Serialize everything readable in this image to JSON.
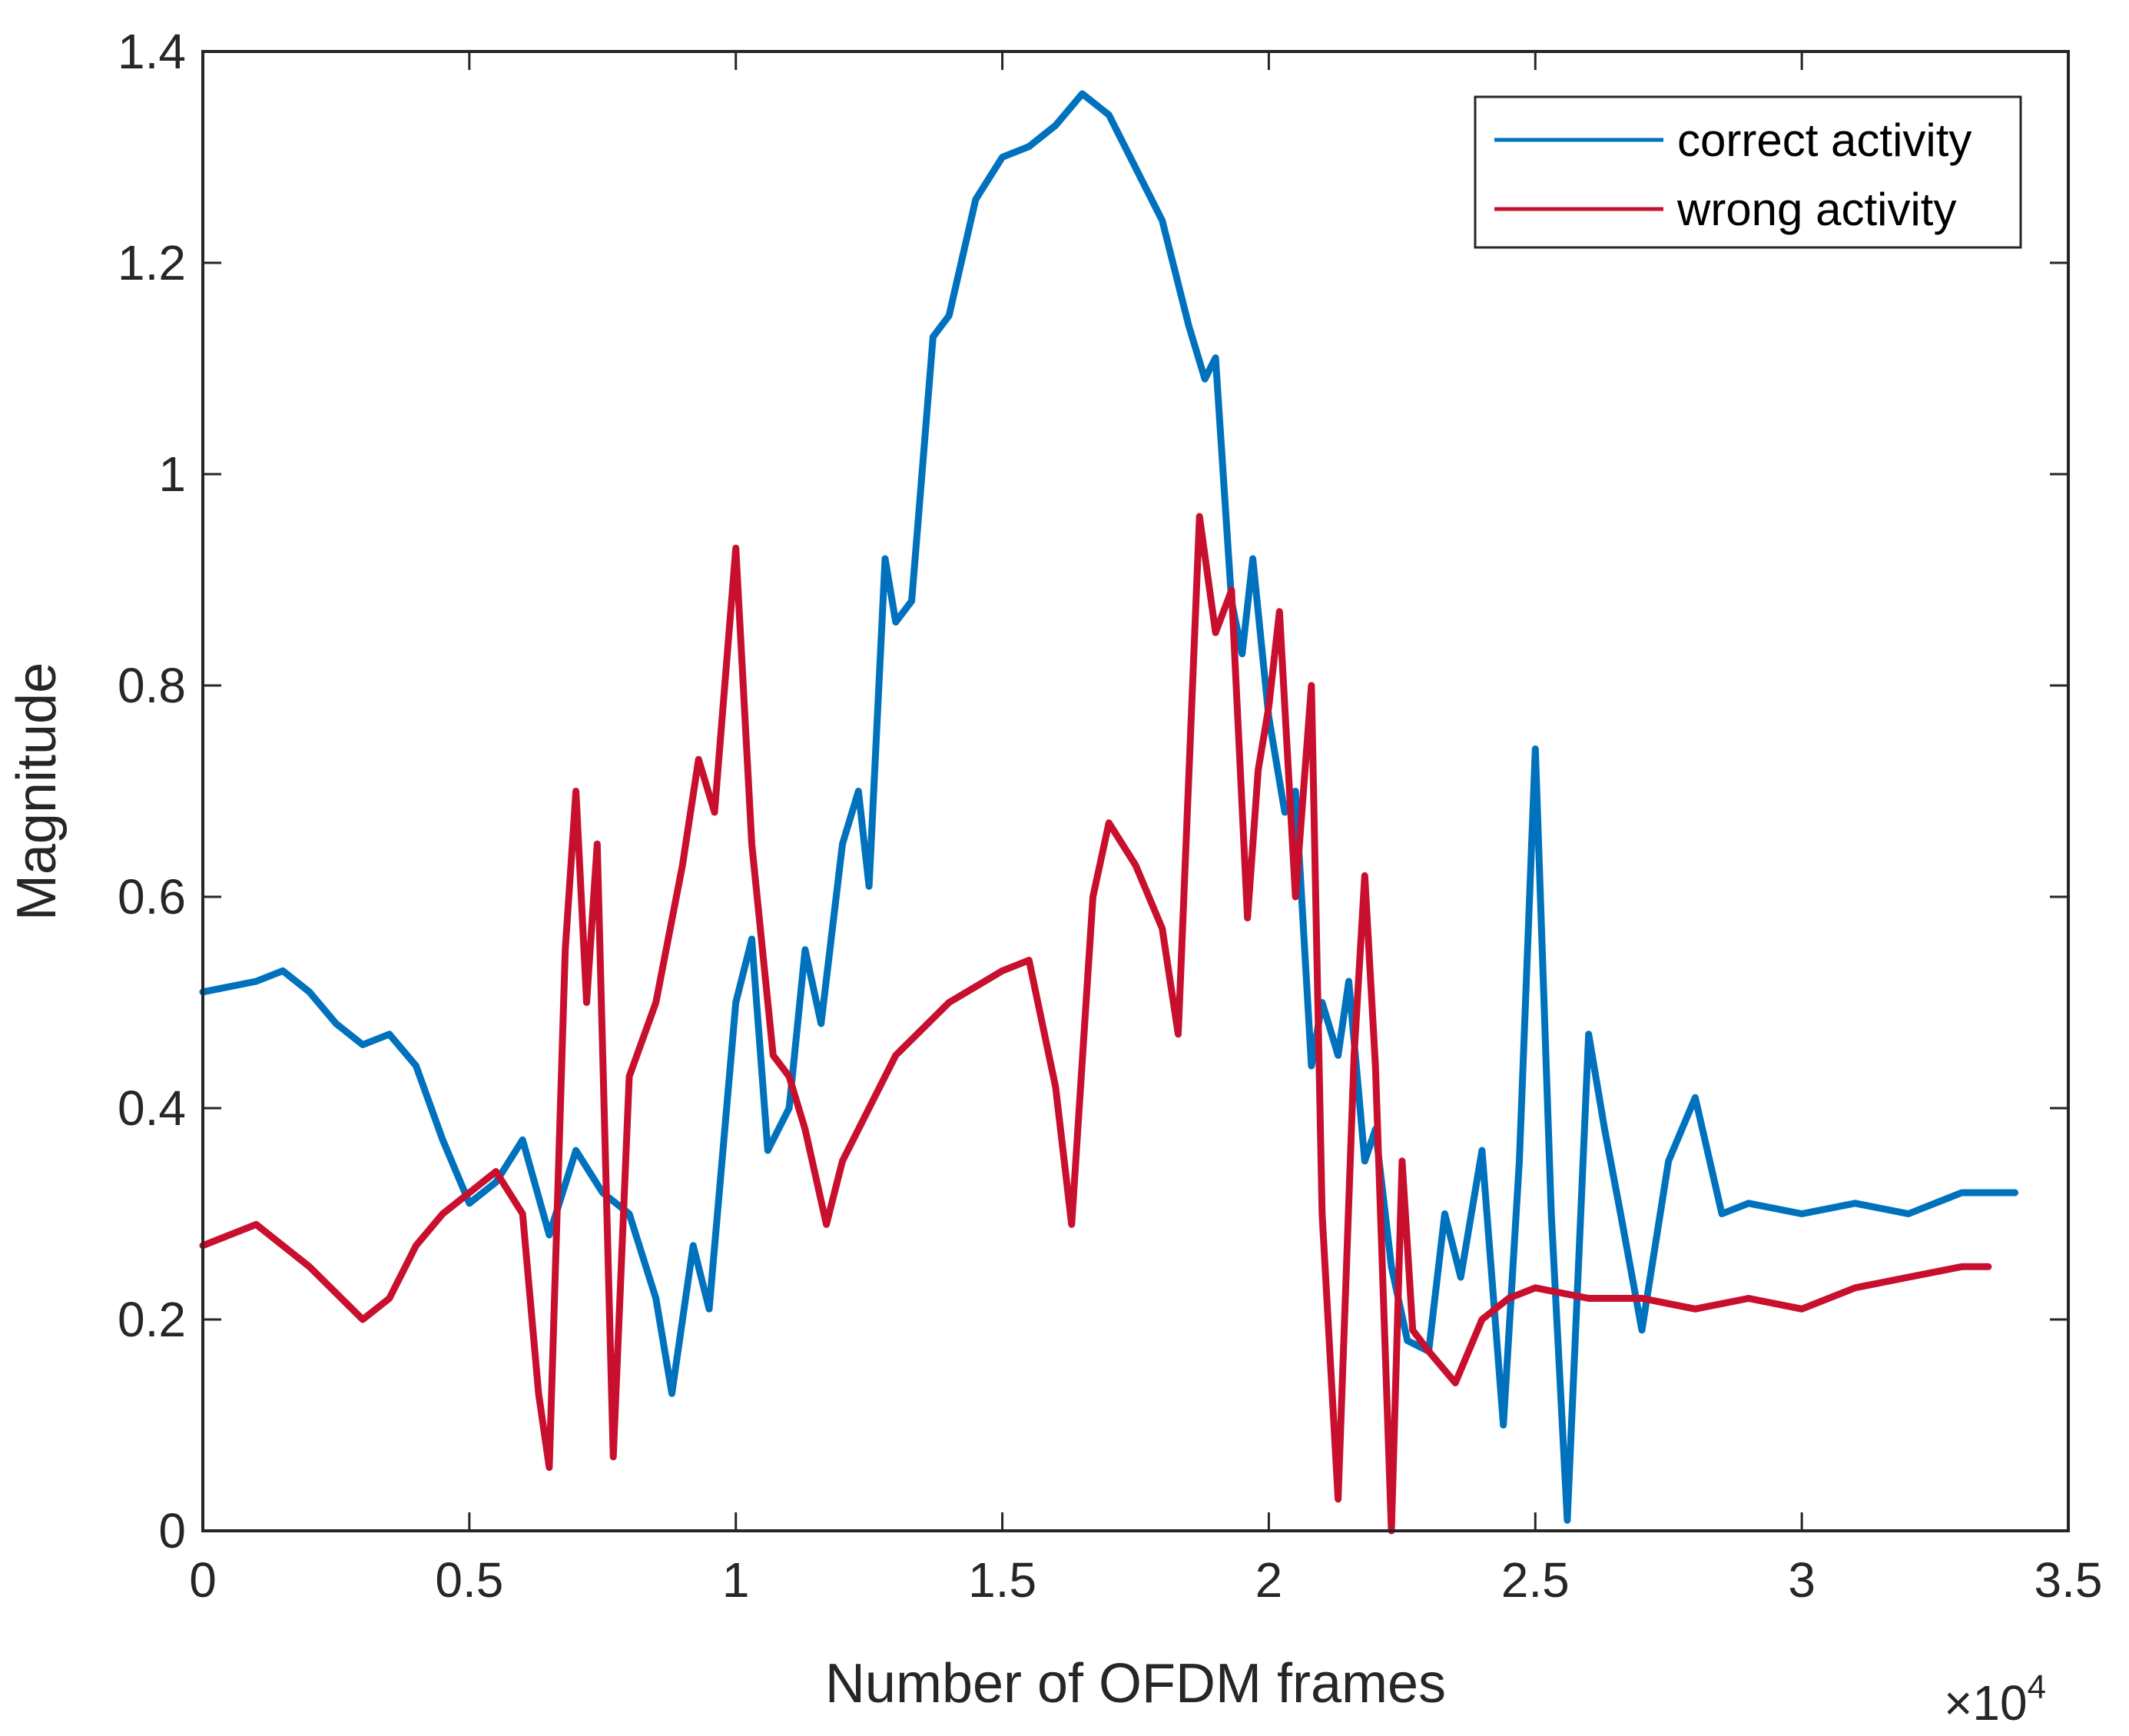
{
  "chart_data": {
    "type": "line",
    "title": "",
    "xlabel": "Number of OFDM frames",
    "ylabel": "Magnitude",
    "x_multiplier_base": "×10",
    "x_multiplier_exp": "4",
    "xlim": [
      0,
      3.5
    ],
    "ylim": [
      0,
      1.4
    ],
    "xticks": [
      0,
      0.5,
      1,
      1.5,
      2,
      2.5,
      3,
      3.5
    ],
    "xtick_labels": [
      "0",
      "0.5",
      "1",
      "1.5",
      "2",
      "2.5",
      "3",
      "3.5"
    ],
    "yticks": [
      0,
      0.2,
      0.4,
      0.6,
      0.8,
      1,
      1.2,
      1.4
    ],
    "ytick_labels": [
      "0",
      "0.2",
      "0.4",
      "0.6",
      "0.8",
      "1",
      "1.2",
      "1.4"
    ],
    "grid": false,
    "legend_position": "top-right",
    "series": [
      {
        "name": "correct activity",
        "color": "#0072BD",
        "x": [
          0,
          0.1,
          0.15,
          0.2,
          0.25,
          0.3,
          0.35,
          0.4,
          0.45,
          0.5,
          0.55,
          0.6,
          0.65,
          0.7,
          0.75,
          0.8,
          0.85,
          0.88,
          0.92,
          0.95,
          1.0,
          1.03,
          1.06,
          1.1,
          1.13,
          1.16,
          1.2,
          1.23,
          1.25,
          1.28,
          1.3,
          1.33,
          1.37,
          1.4,
          1.45,
          1.5,
          1.55,
          1.6,
          1.65,
          1.7,
          1.75,
          1.8,
          1.85,
          1.88,
          1.9,
          1.93,
          1.95,
          1.97,
          2.0,
          2.03,
          2.05,
          2.08,
          2.1,
          2.13,
          2.15,
          2.18,
          2.2,
          2.23,
          2.26,
          2.3,
          2.33,
          2.36,
          2.4,
          2.44,
          2.47,
          2.5,
          2.53,
          2.56,
          2.6,
          2.63,
          2.66,
          2.7,
          2.75,
          2.8,
          2.85,
          2.9,
          3.0,
          3.1,
          3.2,
          3.3,
          3.4
        ],
        "y": [
          0.51,
          0.52,
          0.53,
          0.51,
          0.48,
          0.46,
          0.47,
          0.44,
          0.37,
          0.31,
          0.33,
          0.37,
          0.28,
          0.36,
          0.32,
          0.3,
          0.22,
          0.13,
          0.27,
          0.21,
          0.5,
          0.56,
          0.36,
          0.4,
          0.55,
          0.48,
          0.65,
          0.7,
          0.61,
          0.92,
          0.86,
          0.88,
          1.13,
          1.15,
          1.26,
          1.3,
          1.31,
          1.33,
          1.36,
          1.34,
          1.29,
          1.24,
          1.14,
          1.09,
          1.11,
          0.88,
          0.83,
          0.92,
          0.77,
          0.68,
          0.7,
          0.44,
          0.5,
          0.45,
          0.52,
          0.35,
          0.38,
          0.25,
          0.18,
          0.17,
          0.3,
          0.24,
          0.36,
          0.1,
          0.35,
          0.74,
          0.3,
          0.01,
          0.47,
          0.38,
          0.3,
          0.19,
          0.35,
          0.41,
          0.3,
          0.31,
          0.3,
          0.31,
          0.3,
          0.32,
          0.32
        ]
      },
      {
        "name": "wrong activity",
        "color": "#C8102E",
        "x": [
          0,
          0.1,
          0.2,
          0.3,
          0.35,
          0.4,
          0.45,
          0.5,
          0.55,
          0.6,
          0.63,
          0.65,
          0.68,
          0.7,
          0.72,
          0.74,
          0.77,
          0.8,
          0.85,
          0.9,
          0.93,
          0.96,
          1.0,
          1.03,
          1.07,
          1.1,
          1.13,
          1.17,
          1.2,
          1.3,
          1.4,
          1.5,
          1.55,
          1.6,
          1.63,
          1.67,
          1.7,
          1.75,
          1.8,
          1.83,
          1.87,
          1.9,
          1.93,
          1.96,
          1.98,
          2.0,
          2.02,
          2.05,
          2.08,
          2.1,
          2.13,
          2.16,
          2.18,
          2.2,
          2.23,
          2.25,
          2.27,
          2.3,
          2.35,
          2.4,
          2.45,
          2.5,
          2.6,
          2.7,
          2.8,
          2.9,
          3.0,
          3.1,
          3.2,
          3.3,
          3.35
        ],
        "y": [
          0.27,
          0.29,
          0.25,
          0.2,
          0.22,
          0.27,
          0.3,
          0.32,
          0.34,
          0.3,
          0.13,
          0.06,
          0.55,
          0.7,
          0.5,
          0.65,
          0.07,
          0.43,
          0.5,
          0.63,
          0.73,
          0.68,
          0.93,
          0.65,
          0.45,
          0.43,
          0.38,
          0.29,
          0.35,
          0.45,
          0.5,
          0.53,
          0.54,
          0.42,
          0.29,
          0.6,
          0.67,
          0.63,
          0.57,
          0.47,
          0.96,
          0.85,
          0.89,
          0.58,
          0.72,
          0.78,
          0.87,
          0.6,
          0.8,
          0.3,
          0.03,
          0.45,
          0.62,
          0.44,
          0.0,
          0.35,
          0.19,
          0.17,
          0.14,
          0.2,
          0.22,
          0.23,
          0.22,
          0.22,
          0.21,
          0.22,
          0.21,
          0.23,
          0.24,
          0.25,
          0.25
        ]
      }
    ]
  }
}
